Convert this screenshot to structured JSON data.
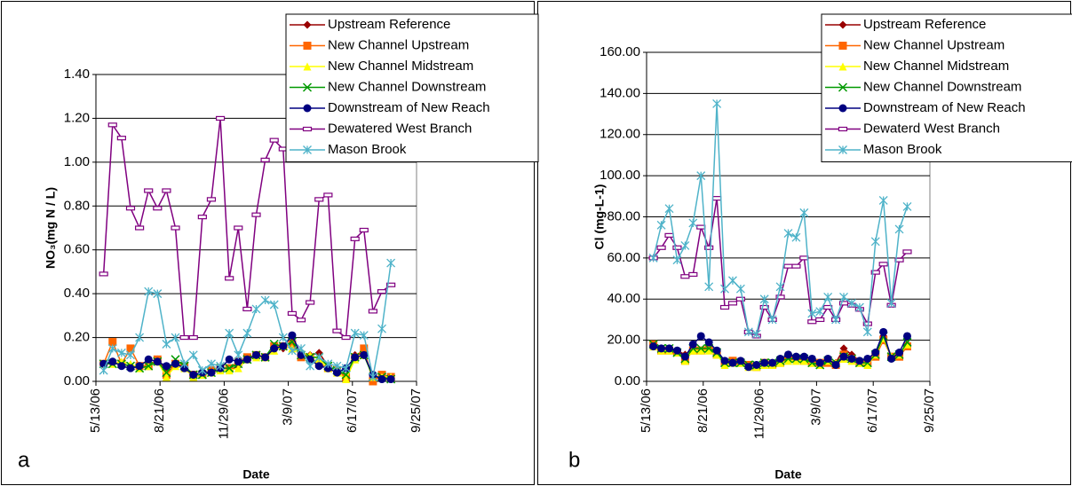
{
  "chart_data": [
    {
      "type": "line",
      "panel_label": "a",
      "x_label": "Date",
      "y_label": "NO₃(mg N / L)",
      "x": [
        "5/25/06",
        "6/8/06",
        "6/22/06",
        "7/6/06",
        "7/20/06",
        "8/3/06",
        "8/17/06",
        "8/31/06",
        "9/14/06",
        "9/28/06",
        "10/12/06",
        "10/26/06",
        "11/9/06",
        "11/23/06",
        "12/7/06",
        "12/21/06",
        "1/4/07",
        "1/18/07",
        "2/1/07",
        "2/15/07",
        "3/1/07",
        "3/15/07",
        "3/29/07",
        "4/12/07",
        "4/26/07",
        "5/10/07",
        "5/24/07",
        "6/7/07",
        "6/21/07",
        "7/5/07",
        "7/19/07",
        "8/2/07",
        "8/16/07"
      ],
      "xlim": [
        "5/13/06",
        "9/25/07"
      ],
      "xticks": [
        "5/13/06",
        "8/21/06",
        "11/29/06",
        "3/9/07",
        "6/17/07",
        "9/25/07"
      ],
      "ylim": [
        0,
        1.4
      ],
      "yticks": [
        {
          "value": 0,
          "label": "0.00"
        },
        {
          "value": 0.2,
          "label": "0.20"
        },
        {
          "value": 0.4,
          "label": "0.40"
        },
        {
          "value": 0.6,
          "label": "0.60"
        },
        {
          "value": 0.8,
          "label": "0.80"
        },
        {
          "value": 1.0,
          "label": "1.00"
        },
        {
          "value": 1.2,
          "label": "1.20"
        },
        {
          "value": 1.4,
          "label": "1.40"
        }
      ],
      "grid": true,
      "legend": "top-right",
      "series": [
        {
          "name": "Upstream Reference",
          "color": "#990000",
          "marker": "diamond",
          "values": [
            0.08,
            0.08,
            0.08,
            0.07,
            0.06,
            0.07,
            0.1,
            0.05,
            0.08,
            0.07,
            0.02,
            0.03,
            0.04,
            0.05,
            0.05,
            0.07,
            0.1,
            0.12,
            0.11,
            0.15,
            0.15,
            0.18,
            0.12,
            0.12,
            0.13,
            0.07,
            0.05,
            0.02,
            0.12,
            0.13,
            0.02,
            0.02,
            0.01
          ]
        },
        {
          "name": "New Channel Upstream",
          "color": "#ff6600",
          "marker": "square",
          "values": [
            0.08,
            0.18,
            0.08,
            0.15,
            0.07,
            0.07,
            0.1,
            0.03,
            0.08,
            0.07,
            0.03,
            0.03,
            0.05,
            0.06,
            0.06,
            0.09,
            0.11,
            0.12,
            0.11,
            0.16,
            0.16,
            0.17,
            0.11,
            0.11,
            0.08,
            0.06,
            0.05,
            0.02,
            0.11,
            0.15,
            0.0,
            0.03,
            0.02
          ]
        },
        {
          "name": "New Channel Midstream",
          "color": "#ffff00",
          "marker": "triangle",
          "values": [
            0.08,
            0.08,
            0.09,
            0.08,
            0.06,
            0.07,
            0.09,
            0.02,
            0.07,
            0.06,
            0.02,
            0.03,
            0.04,
            0.05,
            0.05,
            0.06,
            0.1,
            0.11,
            0.11,
            0.14,
            0.16,
            0.15,
            0.13,
            0.12,
            0.1,
            0.06,
            0.04,
            0.01,
            0.1,
            0.12,
            0.02,
            0.02,
            0.02
          ]
        },
        {
          "name": "New Channel Downstream",
          "color": "#009900",
          "marker": "x",
          "values": [
            0.08,
            0.08,
            0.08,
            0.07,
            0.06,
            0.07,
            0.09,
            0.04,
            0.1,
            0.07,
            0.03,
            0.03,
            0.04,
            0.06,
            0.06,
            0.08,
            0.1,
            0.12,
            0.11,
            0.17,
            0.16,
            0.18,
            0.12,
            0.11,
            0.11,
            0.07,
            0.05,
            0.03,
            0.11,
            0.12,
            0.02,
            0.02,
            0.01
          ]
        },
        {
          "name": "Downstream of New Reach",
          "color": "#000080",
          "marker": "circle",
          "values": [
            0.08,
            0.09,
            0.07,
            0.06,
            0.07,
            0.1,
            0.09,
            0.07,
            0.08,
            0.06,
            0.03,
            0.04,
            0.04,
            0.06,
            0.1,
            0.09,
            0.1,
            0.12,
            0.11,
            0.15,
            0.16,
            0.21,
            0.12,
            0.1,
            0.07,
            0.06,
            0.04,
            0.06,
            0.11,
            0.12,
            0.03,
            0.01,
            0.01
          ]
        },
        {
          "name": "Dewatered West Branch",
          "color": "#800080",
          "marker": "dash",
          "values": [
            0.49,
            1.17,
            1.11,
            0.79,
            0.7,
            0.87,
            0.79,
            0.87,
            0.7,
            0.2,
            0.2,
            0.75,
            0.83,
            1.2,
            0.47,
            0.7,
            0.33,
            0.76,
            1.01,
            1.1,
            1.06,
            0.31,
            0.28,
            0.36,
            0.83,
            0.85,
            0.23,
            0.2,
            0.65,
            0.69,
            0.32,
            0.41,
            0.44
          ]
        },
        {
          "name": "Mason Brook",
          "color": "#4fb3c9",
          "marker": "star",
          "values": [
            0.05,
            0.15,
            0.13,
            0.12,
            0.2,
            0.41,
            0.4,
            0.17,
            0.2,
            0.08,
            0.12,
            0.05,
            0.08,
            0.07,
            0.22,
            0.12,
            0.22,
            0.33,
            0.37,
            0.35,
            0.2,
            0.14,
            0.15,
            0.07,
            0.11,
            0.08,
            0.07,
            0.06,
            0.22,
            0.21,
            0.02,
            0.24,
            0.54
          ]
        }
      ]
    },
    {
      "type": "line",
      "panel_label": "b",
      "x_label": "Date",
      "y_label": "Cl (mg-L-1)",
      "x": [
        "5/25/06",
        "6/8/06",
        "6/22/06",
        "7/6/06",
        "7/20/06",
        "8/3/06",
        "8/17/06",
        "8/31/06",
        "9/14/06",
        "9/28/06",
        "10/12/06",
        "10/26/06",
        "11/9/06",
        "11/23/06",
        "12/7/06",
        "12/21/06",
        "1/4/07",
        "1/18/07",
        "2/1/07",
        "2/15/07",
        "3/1/07",
        "3/15/07",
        "3/29/07",
        "4/12/07",
        "4/26/07",
        "5/10/07",
        "5/24/07",
        "6/7/07",
        "6/21/07",
        "7/5/07",
        "7/19/07",
        "8/2/07",
        "8/16/07"
      ],
      "xlim": [
        "5/13/06",
        "9/25/07"
      ],
      "xticks": [
        "5/13/06",
        "8/21/06",
        "11/29/06",
        "3/9/07",
        "6/17/07",
        "9/25/07"
      ],
      "ylim": [
        0,
        160
      ],
      "yticks": [
        {
          "value": 0,
          "label": "0.00"
        },
        {
          "value": 20,
          "label": "20.00"
        },
        {
          "value": 40,
          "label": "40.00"
        },
        {
          "value": 60,
          "label": "60.00"
        },
        {
          "value": 80,
          "label": "80.00"
        },
        {
          "value": 100,
          "label": "100.00"
        },
        {
          "value": 120,
          "label": "120.00"
        },
        {
          "value": 140,
          "label": "140.00"
        },
        {
          "value": 160,
          "label": "160.00"
        }
      ],
      "grid": true,
      "legend": "top-right",
      "series": [
        {
          "name": "Upstream Reference",
          "color": "#990000",
          "marker": "diamond",
          "values": [
            18,
            16,
            16,
            15,
            13,
            16,
            15,
            16,
            15,
            9,
            9,
            9,
            8,
            8,
            9,
            9,
            10,
            11,
            11,
            11,
            10,
            9,
            10,
            9,
            16,
            13,
            10,
            10,
            13,
            22,
            12,
            13,
            18
          ]
        },
        {
          "name": "New Channel Upstream",
          "color": "#ff6600",
          "marker": "square",
          "values": [
            18,
            15,
            15,
            14,
            10,
            15,
            15,
            16,
            13,
            9,
            10,
            9,
            8,
            7,
            9,
            8,
            9,
            11,
            11,
            10,
            9,
            9,
            9,
            8,
            13,
            11,
            9,
            9,
            12,
            20,
            12,
            12,
            17
          ]
        },
        {
          "name": "New Channel Midstream",
          "color": "#ffff00",
          "marker": "triangle",
          "values": [
            17,
            15,
            15,
            14,
            10,
            15,
            15,
            15,
            13,
            8,
            9,
            9,
            7,
            7,
            8,
            8,
            9,
            10,
            10,
            10,
            9,
            8,
            10,
            9,
            11,
            10,
            9,
            8,
            13,
            21,
            12,
            13,
            18
          ]
        },
        {
          "name": "New Channel Downstream",
          "color": "#009900",
          "marker": "x",
          "values": [
            18,
            16,
            16,
            14,
            11,
            16,
            16,
            16,
            14,
            9,
            9,
            9,
            8,
            8,
            9,
            9,
            10,
            11,
            11,
            11,
            9,
            8,
            10,
            9,
            12,
            11,
            9,
            9,
            13,
            22,
            12,
            13,
            19
          ]
        },
        {
          "name": "Downstream of New Reach",
          "color": "#000080",
          "marker": "circle",
          "values": [
            17,
            16,
            16,
            15,
            12,
            18,
            22,
            19,
            15,
            10,
            9,
            10,
            7,
            8,
            9,
            9,
            11,
            13,
            12,
            12,
            11,
            9,
            11,
            8,
            12,
            11,
            10,
            11,
            14,
            24,
            11,
            14,
            22
          ]
        },
        {
          "name": "Dewaterd West Branch",
          "color": "#800080",
          "marker": "dash",
          "values": [
            60,
            65,
            71,
            65,
            51,
            52,
            75,
            65,
            89,
            36,
            38,
            40,
            24,
            22,
            36,
            30,
            41,
            56,
            56,
            60,
            29,
            30,
            36,
            30,
            38,
            37,
            35,
            28,
            53,
            57,
            37,
            59,
            63
          ]
        },
        {
          "name": "Mason Brook",
          "color": "#4fb3c9",
          "marker": "star",
          "values": [
            60,
            76,
            84,
            59,
            66,
            77,
            100,
            46,
            135,
            45,
            49,
            45,
            24,
            23,
            40,
            30,
            46,
            72,
            70,
            82,
            33,
            34,
            41,
            30,
            41,
            38,
            36,
            24,
            68,
            88,
            38,
            74,
            85
          ]
        }
      ]
    }
  ]
}
